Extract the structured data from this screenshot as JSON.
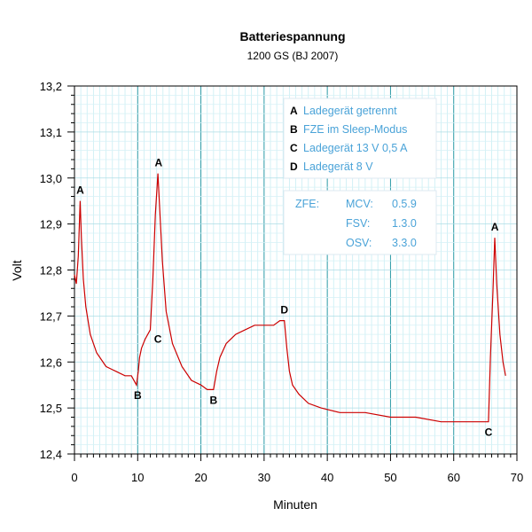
{
  "chart_data": {
    "type": "line",
    "title": "Batteriespannung",
    "subtitle": "1200 GS (BJ 2007)",
    "xlabel": "Minuten",
    "ylabel": "Volt",
    "xlim": [
      0,
      70
    ],
    "ylim": [
      12.4,
      13.2
    ],
    "x_ticks": [
      0,
      10,
      20,
      30,
      40,
      50,
      60,
      70
    ],
    "x_tick_labels": [
      "0",
      "10",
      "20",
      "30",
      "40",
      "50",
      "60",
      "70"
    ],
    "y_ticks": [
      12.4,
      12.5,
      12.6,
      12.7,
      12.8,
      12.9,
      13.0,
      13.1,
      13.2
    ],
    "y_tick_labels": [
      "12,4",
      "12,5",
      "12,6",
      "12,7",
      "12,8",
      "12,9",
      "13,0",
      "13,1",
      "13,2"
    ],
    "grid": true,
    "series": [
      {
        "color": "#cc0000",
        "x": [
          0.0,
          0.3,
          0.6,
          0.9,
          1.1,
          1.4,
          1.8,
          2.5,
          3.5,
          5.0,
          6.5,
          8.0,
          9.0,
          9.8,
          10.1,
          10.3,
          10.6,
          11.2,
          12.0,
          12.4,
          12.8,
          13.2,
          13.5,
          13.9,
          14.5,
          15.5,
          17.0,
          18.5,
          20.0,
          21.0,
          22.0,
          22.5,
          23.0,
          24.0,
          25.5,
          27.0,
          28.5,
          30.0,
          31.5,
          32.5,
          33.2,
          33.6,
          34.0,
          34.5,
          35.5,
          37.0,
          39.0,
          42.0,
          46.0,
          50.0,
          54.0,
          58.0,
          62.0,
          65.0,
          65.5,
          65.8,
          66.2,
          66.5,
          66.8,
          67.3,
          67.8,
          68.2
        ],
        "y": [
          12.79,
          12.77,
          12.83,
          12.95,
          12.87,
          12.78,
          12.72,
          12.66,
          12.62,
          12.59,
          12.58,
          12.57,
          12.57,
          12.55,
          12.58,
          12.61,
          12.63,
          12.65,
          12.67,
          12.78,
          12.92,
          13.01,
          12.93,
          12.82,
          12.71,
          12.64,
          12.59,
          12.56,
          12.55,
          12.54,
          12.54,
          12.58,
          12.61,
          12.64,
          12.66,
          12.67,
          12.68,
          12.68,
          12.68,
          12.69,
          12.69,
          12.63,
          12.58,
          12.55,
          12.53,
          12.51,
          12.5,
          12.49,
          12.49,
          12.48,
          12.48,
          12.47,
          12.47,
          12.47,
          12.47,
          12.61,
          12.75,
          12.87,
          12.77,
          12.66,
          12.6,
          12.57
        ]
      }
    ],
    "annotations": [
      {
        "label": "A",
        "x": 0.9,
        "y": 12.95
      },
      {
        "label": "A",
        "x": 13.3,
        "y": 13.01
      },
      {
        "label": "A",
        "x": 66.5,
        "y": 12.87
      },
      {
        "label": "B",
        "x": 10.0,
        "y": 12.55
      },
      {
        "label": "B",
        "x": 22.0,
        "y": 12.54
      },
      {
        "label": "C",
        "x": 12.5,
        "y": 12.65
      },
      {
        "label": "C",
        "x": 65.5,
        "y": 12.47
      },
      {
        "label": "D",
        "x": 33.2,
        "y": 12.69
      }
    ],
    "legend": {
      "position": "top-right",
      "items": [
        {
          "key": "A",
          "text": "Ladegerät getrennt"
        },
        {
          "key": "B",
          "text": "FZE im Sleep-Modus"
        },
        {
          "key": "C",
          "text": "Ladegerät 13 V  0,5 A"
        },
        {
          "key": "D",
          "text": "Ladegerät  8  V"
        }
      ]
    },
    "info_box": [
      {
        "col1": "ZFE:",
        "col2": "MCV:",
        "col3": "0.5.9"
      },
      {
        "col1": "",
        "col2": "FSV:",
        "col3": "1.3.0"
      },
      {
        "col1": "",
        "col2": "OSV:",
        "col3": "3.3.0"
      }
    ]
  }
}
